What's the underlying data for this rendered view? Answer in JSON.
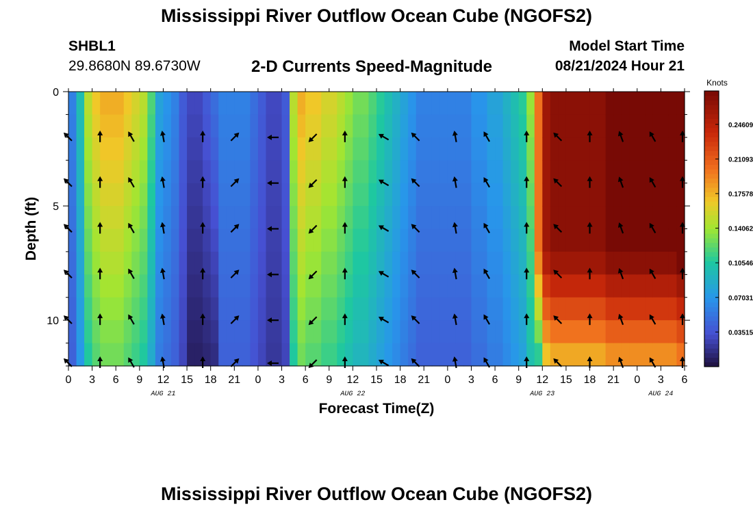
{
  "header": {
    "title": "Mississippi River Outflow Ocean Cube (NGOFS2)",
    "station_id": "SHBL1",
    "coordinates": "29.8680N  89.6730W",
    "model_start_label": "Model Start Time",
    "model_start_value": "08/21/2024 Hour 21"
  },
  "footer": {
    "title": "Mississippi River Outflow Ocean Cube (NGOFS2)"
  },
  "chart_data": {
    "type": "heatmap",
    "title": "2-D Currents Speed-Magnitude",
    "xlabel": "Forecast Time(Z)",
    "ylabel": "Depth (ft)",
    "colorbar_unit": "Knots",
    "colorbar_ticks": [
      "0.03515",
      "0.07031",
      "0.10546",
      "0.14062",
      "0.17578",
      "0.21093",
      "0.24609"
    ],
    "colorbar_range": [
      0,
      0.28
    ],
    "xlim": [
      0,
      78
    ],
    "ylim": [
      0,
      12
    ],
    "y_inverted": true,
    "x_ticks": [
      0,
      3,
      6,
      9,
      12,
      15,
      18,
      21,
      24,
      27,
      30,
      33,
      36,
      39,
      42,
      45,
      48,
      51,
      54,
      57,
      60,
      63,
      66,
      69,
      72,
      75,
      78
    ],
    "x_tick_labels": [
      "0",
      "3",
      "6",
      "9",
      "12",
      "15",
      "18",
      "21",
      "0",
      "3",
      "6",
      "9",
      "12",
      "15",
      "18",
      "21",
      "0",
      "3",
      "6",
      "9",
      "12",
      "15",
      "18",
      "21",
      "0",
      "3",
      "6"
    ],
    "y_ticks": [
      0,
      5,
      10
    ],
    "y_tick_labels": [
      "0",
      "5",
      "10"
    ],
    "day_labels": [
      {
        "text": "AUG 21",
        "x": 12
      },
      {
        "text": "AUG 22",
        "x": 36
      },
      {
        "text": "AUG 23",
        "x": 60
      },
      {
        "text": "AUG 24",
        "x": 75
      }
    ],
    "depths": [
      0,
      1,
      2,
      3,
      4,
      5,
      6,
      7,
      8,
      9,
      10,
      11,
      12
    ],
    "time_columns": [
      0,
      1,
      2,
      3,
      4,
      5,
      6,
      7,
      8,
      9,
      10,
      11,
      12,
      13,
      14,
      15,
      16,
      17,
      18,
      19,
      20,
      21,
      22,
      23,
      24,
      25,
      26,
      27,
      28,
      29,
      30,
      31,
      32,
      33,
      34,
      35,
      36,
      37,
      38,
      39,
      40,
      41,
      42,
      43,
      44,
      45,
      46,
      47,
      48,
      49,
      50,
      51,
      52,
      53,
      54,
      55,
      56,
      57,
      58,
      59,
      60,
      61,
      62,
      63,
      64,
      65,
      66,
      67,
      68,
      69,
      70,
      71,
      72,
      73,
      74,
      75,
      76,
      77
    ],
    "speed_profile": [
      0.06,
      0.1,
      0.15,
      0.17,
      0.18,
      0.18,
      0.18,
      0.17,
      0.16,
      0.15,
      0.12,
      0.08,
      0.07,
      0.06,
      0.04,
      0.03,
      0.03,
      0.04,
      0.05,
      0.06,
      0.06,
      0.06,
      0.06,
      0.05,
      0.04,
      0.03,
      0.03,
      0.04,
      0.15,
      0.18,
      0.17,
      0.17,
      0.16,
      0.16,
      0.15,
      0.14,
      0.13,
      0.13,
      0.12,
      0.11,
      0.1,
      0.09,
      0.08,
      0.07,
      0.06,
      0.06,
      0.06,
      0.06,
      0.06,
      0.06,
      0.06,
      0.07,
      0.07,
      0.08,
      0.08,
      0.09,
      0.1,
      0.11,
      0.14,
      0.2,
      0.26,
      0.27,
      0.27,
      0.27,
      0.27,
      0.27,
      0.27,
      0.27,
      0.28,
      0.28,
      0.28,
      0.28,
      0.28,
      0.28,
      0.28,
      0.28,
      0.28,
      0.29
    ],
    "arrow_times": [
      0,
      4,
      8,
      12,
      17,
      21,
      26,
      31,
      35,
      40,
      44,
      49,
      53,
      58,
      62,
      66,
      70,
      74,
      78
    ],
    "arrow_depths": [
      2,
      4,
      6,
      8,
      10,
      12
    ],
    "arrow_directions_deg": [
      135,
      90,
      120,
      100,
      90,
      45,
      180,
      225,
      90,
      150,
      135,
      100,
      120,
      90,
      135,
      90,
      110,
      120,
      90
    ]
  }
}
